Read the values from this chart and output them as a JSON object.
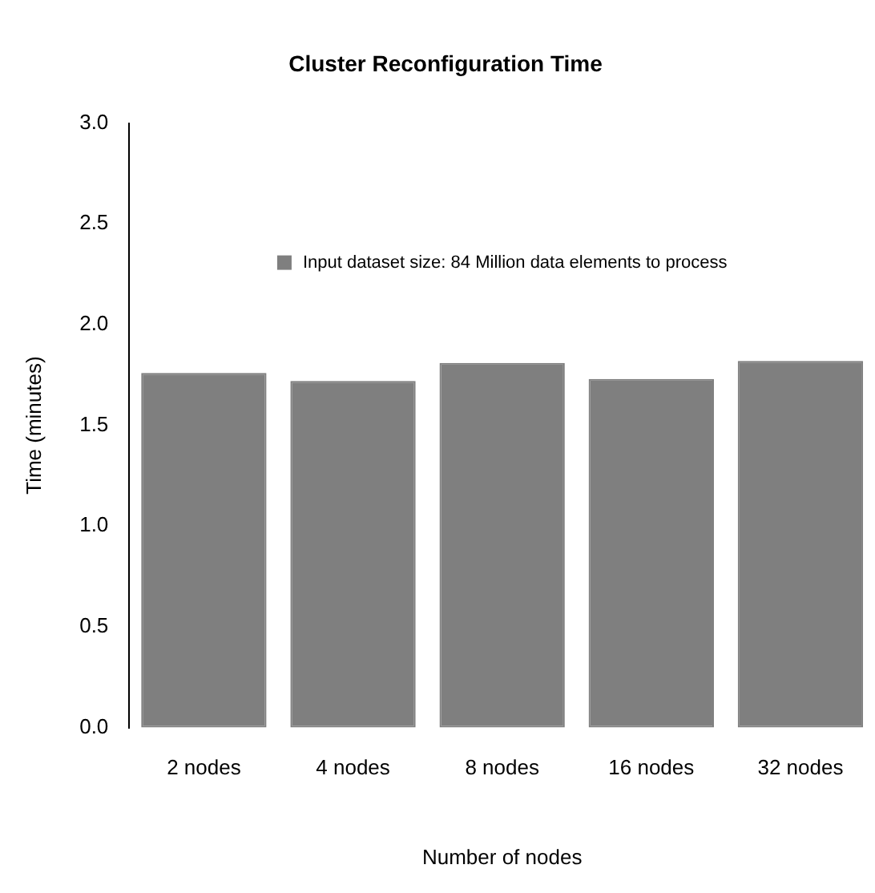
{
  "chart_data": {
    "type": "bar",
    "title": "Cluster Reconfiguration Time",
    "xlabel": "Number of nodes",
    "ylabel": "Time (minutes)",
    "categories": [
      "2 nodes",
      "4 nodes",
      "8 nodes",
      "16 nodes",
      "32 nodes"
    ],
    "series": [
      {
        "name": "Input dataset size: 84 Million data elements to process",
        "color": "#7f7f7f",
        "values": [
          1.76,
          1.72,
          1.81,
          1.73,
          1.82
        ]
      }
    ],
    "ylim": [
      0,
      3
    ],
    "yticks": [
      {
        "value": 0,
        "label": "0.0"
      },
      {
        "value": 0.5,
        "label": "0.5"
      },
      {
        "value": 1,
        "label": "1.0"
      },
      {
        "value": 1.5,
        "label": "1.5"
      },
      {
        "value": 2,
        "label": "2.0"
      },
      {
        "value": 2.5,
        "label": "2.5"
      },
      {
        "value": 3,
        "label": "3.0"
      }
    ],
    "grid": false,
    "legend": "top"
  }
}
